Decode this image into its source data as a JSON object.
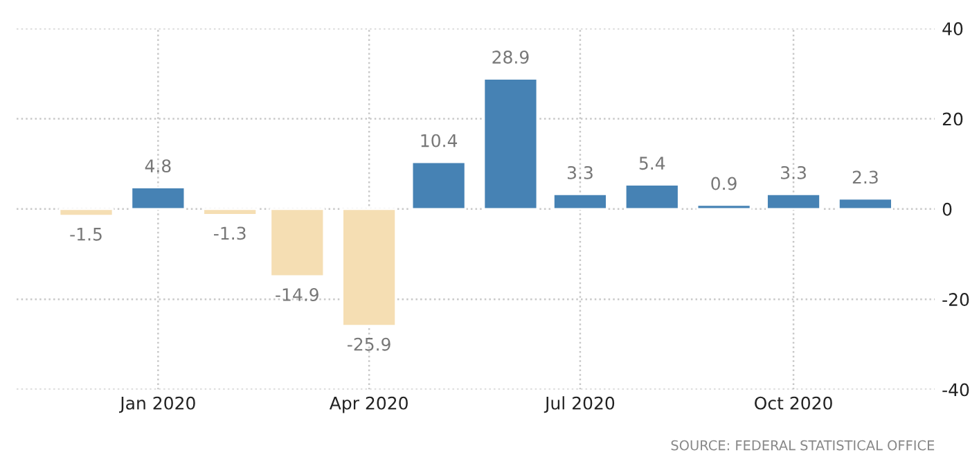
{
  "chart_data": {
    "type": "bar",
    "x": [
      "2019-12-01",
      "2020-01-01",
      "2020-02-01",
      "2020-03-01",
      "2020-04-01",
      "2020-05-01",
      "2020-06-01",
      "2020-07-01",
      "2020-08-01",
      "2020-09-01",
      "2020-10-01",
      "2020-11-01"
    ],
    "values": [
      -1.5,
      4.8,
      -1.3,
      -14.9,
      -25.9,
      10.4,
      28.9,
      3.3,
      5.4,
      0.9,
      3.3,
      2.3
    ],
    "colors": [
      "#f5deb3",
      "#4682b4",
      "#f5deb3",
      "#f5deb3",
      "#f5deb3",
      "#4682b4",
      "#4682b4",
      "#4682b4",
      "#4682b4",
      "#4682b4",
      "#4682b4",
      "#4682b4"
    ],
    "data_labels": true,
    "xlim": [
      "2019-11-01",
      "2020-12-01"
    ],
    "xticks": [
      {
        "value": "2020-01-01",
        "label": "Jan 2020"
      },
      {
        "value": "2020-04-01",
        "label": "Apr 2020"
      },
      {
        "value": "2020-07-01",
        "label": "Jul 2020"
      },
      {
        "value": "2020-10-01",
        "label": "Oct 2020"
      }
    ],
    "ylim": [
      -40,
      40
    ],
    "yticks": [
      -40,
      -20,
      0,
      20,
      40
    ],
    "grid": true,
    "annotations": [
      "SOURCE: FEDERAL STATISTICAL OFFICE"
    ]
  }
}
